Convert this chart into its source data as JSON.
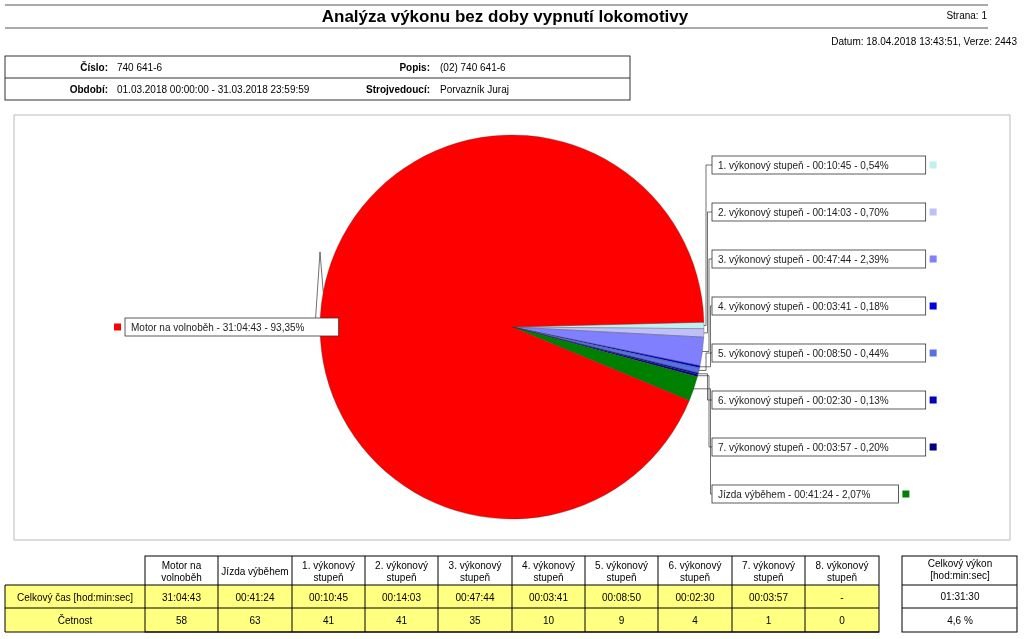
{
  "chart_data": {
    "type": "pie",
    "title": "Analýza výkonu bez doby vypnutí lokomotivy",
    "categories": [
      "1. výkonový stupeň - 00:10:45 - 0,54%",
      "2. výkonový stupeň - 00:14:03 - 0,70%",
      "3. výkonový stupeň - 00:47:44 - 2,39%",
      "4. výkonový stupeň - 00:03:41 - 0,18%",
      "5. výkonový stupeň - 00:08:50 - 0,44%",
      "6. výkonový stupeň - 00:02:30 - 0,13%",
      "7. výkonový stupeň - 00:03:57 - 0,20%",
      "Jízda výběhem - 00:41:24 - 2,07%",
      "Motor na volnoběh - 31:04:43 - 93,35%"
    ],
    "values": [
      0.54,
      0.7,
      2.39,
      0.18,
      0.44,
      0.13,
      0.2,
      2.07,
      93.35
    ],
    "colors": [
      "#c0f0f0",
      "#c0c0f8",
      "#8080ff",
      "#0000e0",
      "#5870e0",
      "#0000c0",
      "#000080",
      "#008000",
      "#ff0000"
    ],
    "annotations": [
      "Strana: 1",
      "Datum: 18.04.2018  13:43:51,  Verze: 2443",
      "Číslo:",
      "740 641-6",
      "Popis:",
      "(02) 740 641-6",
      "Období:",
      "01.03.2018 00:00:00 - 31.03.2018 23:59:59",
      "Strojvedoucí:",
      "Porvazník Juraj",
      "Motor na volnoběh",
      "Jízda výběhem",
      "1. výkonový stupeň",
      "2. výkonový stupeň",
      "3. výkonový stupeň",
      "4. výkonový stupeň",
      "5. výkonový stupeň",
      "6. výkonový stupeň",
      "7. výkonový stupeň",
      "8. výkonový stupeň",
      "Celkový čas [hod:min:sec]",
      "31:04:43",
      "00:41:24",
      "00:10:45",
      "00:14:03",
      "00:47:44",
      "00:03:41",
      "00:08:50",
      "00:02:30",
      "00:03:57",
      "-",
      "Četnost",
      "58",
      "63",
      "41",
      "41",
      "35",
      "10",
      "9",
      "4",
      "1",
      "0",
      "Celkový výkon [hod:min:sec]",
      "01:31:30",
      "4,6 %"
    ]
  }
}
